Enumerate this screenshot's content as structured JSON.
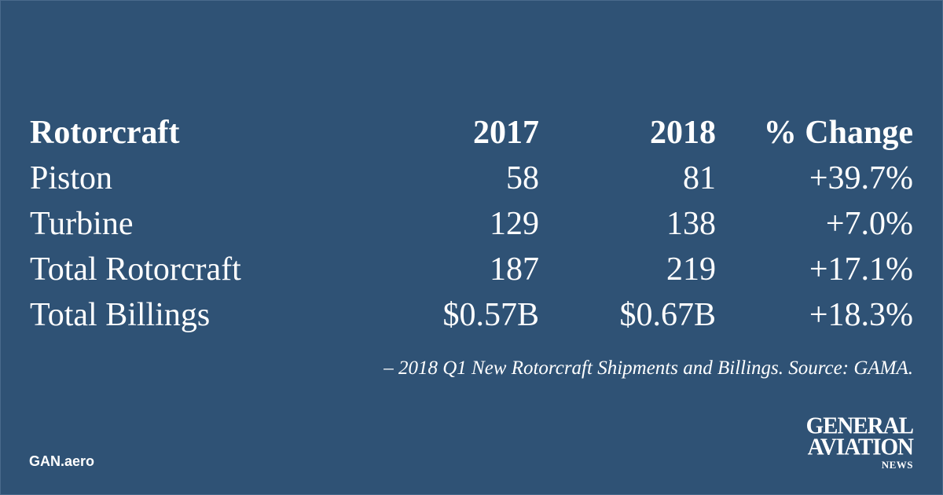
{
  "chart_data": {
    "type": "table",
    "columns": [
      "Rotorcraft",
      "2017",
      "2018",
      "% Change"
    ],
    "rows": [
      [
        "Piston",
        "58",
        "81",
        "+39.7%"
      ],
      [
        "Turbine",
        "129",
        "138",
        "+7.0%"
      ],
      [
        "Total Rotorcraft",
        "187",
        "219",
        "+17.1%"
      ],
      [
        "Total Billings",
        "$0.57B",
        "$0.67B",
        "+18.3%"
      ]
    ],
    "caption": "– 2018 Q1 New Rotorcraft Shipments and Billings. Source: GAMA."
  },
  "footer": {
    "site": "GAN.aero",
    "logo_line1": "GENERAL",
    "logo_line2": "AVIATION",
    "logo_line3": "NEWS"
  },
  "colors": {
    "background": "#2f5275",
    "text": "#ffffff"
  }
}
